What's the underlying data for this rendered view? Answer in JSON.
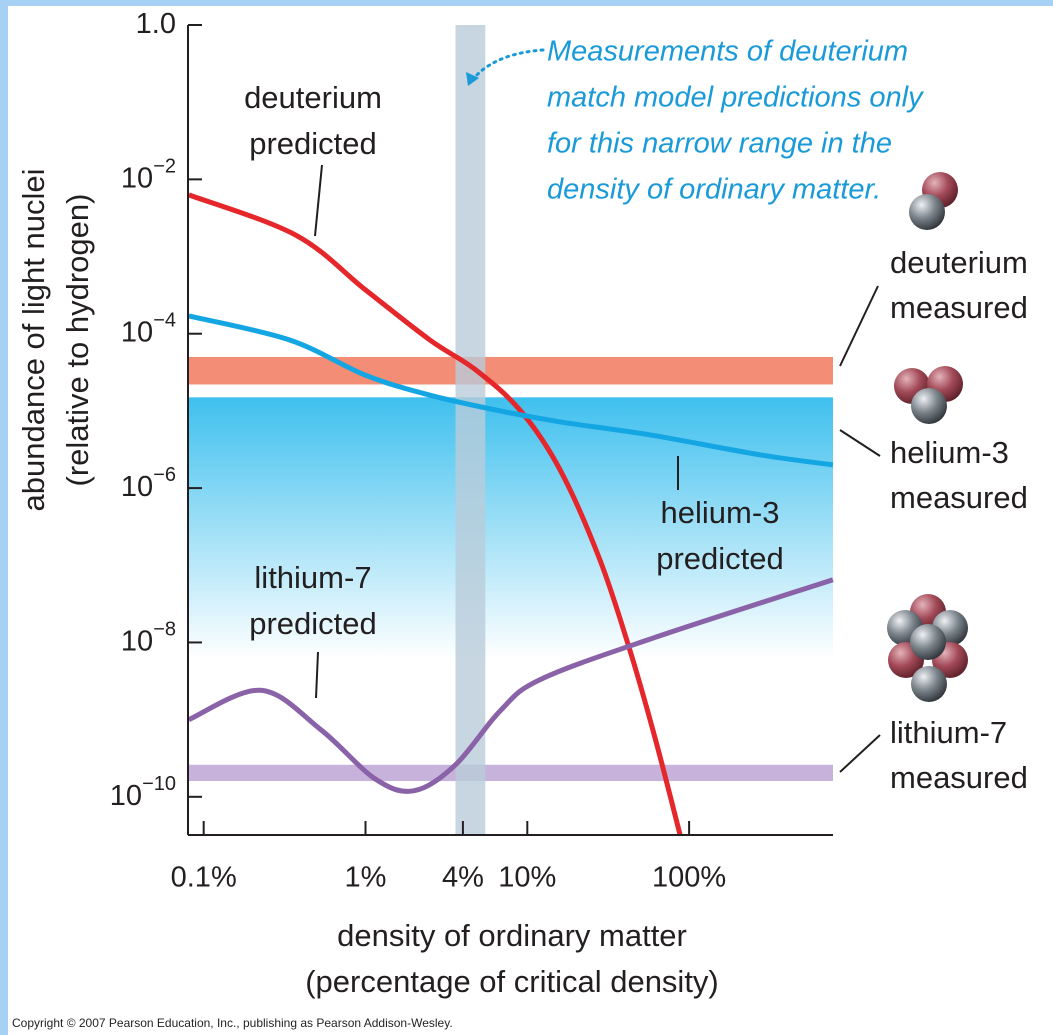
{
  "chart_data": {
    "type": "line",
    "xlabel": [
      "density of ordinary matter",
      "(percentage of critical density)"
    ],
    "ylabel": [
      "abundance of light nuclei",
      "(relative to hydrogen)"
    ],
    "xscale": "log",
    "yscale": "log",
    "xlim": [
      0.08,
      775
    ],
    "ylim": [
      3.2e-11,
      1
    ],
    "xticks": [
      {
        "value": 0.1,
        "label": "0.1%"
      },
      {
        "value": 1,
        "label": "1%"
      },
      {
        "value": 4,
        "label": "4%"
      },
      {
        "value": 10,
        "label": "10%"
      },
      {
        "value": 100,
        "label": "100%"
      }
    ],
    "yticks": [
      {
        "value": 1,
        "label": "1.0"
      },
      {
        "value": 0.01,
        "label": "10",
        "exponent": "−2"
      },
      {
        "value": 0.0001,
        "label": "10",
        "exponent": "−4"
      },
      {
        "value": 1e-06,
        "label": "10",
        "exponent": "−6"
      },
      {
        "value": 1e-08,
        "label": "10",
        "exponent": "−8"
      },
      {
        "value": 1e-10,
        "label": "10",
        "exponent": "−10"
      }
    ],
    "series": [
      {
        "label": [
          "deuterium",
          "predicted"
        ],
        "color": "#e5262b",
        "x": [
          0.081,
          0.37,
          1,
          2.5,
          4.8,
          9.1,
          16,
          28,
          43,
          62,
          88
        ],
        "values": [
          0.0063,
          0.0019,
          0.00037,
          8.3e-05,
          3.4e-05,
          1e-05,
          1.7e-06,
          1.2e-07,
          8e-09,
          5.5e-10,
          3.2e-11
        ]
      },
      {
        "label": [
          "helium-3",
          "predicted"
        ],
        "color": "#14a5e3",
        "x": [
          0.081,
          0.34,
          1,
          2.5,
          6.8,
          16,
          57,
          274,
          774
        ],
        "values": [
          0.00017,
          8.3e-05,
          2.9e-05,
          1.6e-05,
          1e-05,
          7.2e-06,
          4.9e-06,
          2.7e-06,
          2e-06
        ]
      },
      {
        "label": [
          "lithium-7",
          "predicted"
        ],
        "color": "#8a62a8",
        "x": [
          0.081,
          0.225,
          0.53,
          1.15,
          2.0,
          3.6,
          6.8,
          12,
          57,
          774
        ],
        "values": [
          1e-09,
          2.4e-09,
          7.4e-10,
          1.7e-10,
          1.2e-10,
          2.6e-10,
          1.3e-09,
          3.3e-09,
          1.1e-08,
          6.5e-08
        ]
      }
    ],
    "measured": [
      {
        "label": [
          "deuterium",
          "measured"
        ],
        "color": "#f3876e",
        "range": [
          2.2e-05,
          5e-05
        ]
      },
      {
        "label": [
          "helium-3",
          "measured"
        ],
        "color": "#3fc0ee",
        "range": [
          6e-09,
          1.5e-05
        ]
      },
      {
        "label": [
          "lithium-7",
          "measured"
        ],
        "color": "#c6b2db",
        "range": [
          1.6e-10,
          2.6e-10
        ]
      }
    ],
    "highlight": {
      "xrange": [
        3.6,
        5.5
      ],
      "color": "#b9ccd9",
      "annotation": [
        "Measurements of deuterium",
        "match model predictions only",
        "for this narrow range in the",
        "density of ordinary matter."
      ]
    },
    "copyright": "Copyright © 2007 Pearson Education, Inc., publishing as Pearson Addison-Wesley."
  }
}
